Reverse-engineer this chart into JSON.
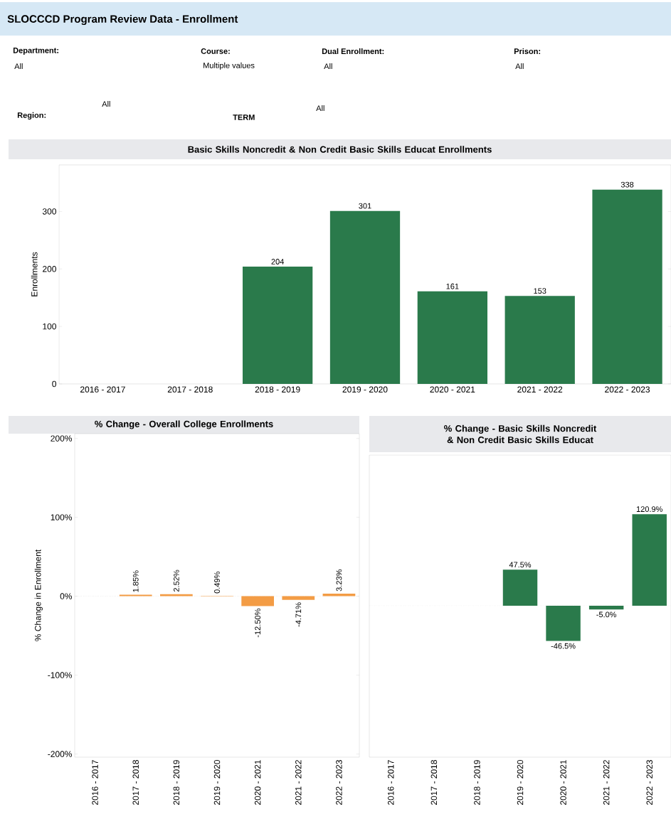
{
  "chart_data": [
    {
      "type": "bar",
      "title": "Basic Skills Noncredit & Non Credit Basic Skills Educat Enrollments",
      "ylabel": "Enrollments",
      "categories": [
        "2016 - 2017",
        "2017 - 2018",
        "2018 - 2019",
        "2019 - 2020",
        "2020 - 2021",
        "2021 - 2022",
        "2022 - 2023"
      ],
      "values": [
        null,
        null,
        204,
        301,
        161,
        153,
        338
      ],
      "color": "#2a7a4b",
      "data_labels": true,
      "ylim": [
        0,
        381
      ],
      "yticks": [
        0,
        100,
        200,
        300
      ],
      "annotations": [
        "SLOCCCD Program Review Data - Enrollment",
        "Department:",
        "All",
        "Course:",
        "Multiple values",
        "Dual Enrollment:",
        "All",
        "Prison:",
        "All",
        "Region:",
        "All",
        "TERM",
        "All"
      ]
    },
    {
      "type": "bar",
      "title": "% Change - Overall College Enrollments",
      "ylabel": "% Change in Enrollment",
      "categories": [
        "2016 - 2017",
        "2017 - 2018",
        "2018 - 2019",
        "2019 - 2020",
        "2020 - 2021",
        "2021 - 2022",
        "2022 - 2023"
      ],
      "values": [
        null,
        1.85,
        2.52,
        0.49,
        -12.5,
        -4.71,
        3.23
      ],
      "color": "#f39c45",
      "value_labels": [
        null,
        "1.85%",
        "2.52%",
        "0.49%",
        "-12.50%",
        "-4.71%",
        "3.23%"
      ],
      "ylim": [
        -204,
        206
      ],
      "yticks": [
        {
          "value": -200,
          "label": "-200%"
        },
        {
          "value": -100,
          "label": "-100%"
        },
        {
          "value": 0,
          "label": "0%"
        },
        {
          "value": 100,
          "label": "100%"
        },
        {
          "value": 200,
          "label": "200%"
        }
      ],
      "ref_lines": [
        {
          "axis": "y",
          "value": 0,
          "color": "#999999",
          "line_style": "dotted"
        }
      ]
    },
    {
      "type": "bar",
      "title": "% Change - Basic Skills Noncredit & Non Credit Basic Skills Educat",
      "categories": [
        "2016 - 2017",
        "2017 - 2018",
        "2018 - 2019",
        "2019 - 2020",
        "2020 - 2021",
        "2021 - 2022",
        "2022 - 2023"
      ],
      "values": [
        null,
        null,
        null,
        47.5,
        -46.5,
        -5.0,
        120.9
      ],
      "color": "#2a7a4b",
      "value_labels": [
        null,
        null,
        null,
        "47.5%",
        "-46.5%",
        "-5.0%",
        "120.9%"
      ],
      "ylim": [
        -200,
        199
      ],
      "tick_labels": "x",
      "ref_lines": [
        {
          "axis": "y",
          "value": 0,
          "color": "#999999",
          "line_style": "dotted"
        }
      ]
    }
  ]
}
